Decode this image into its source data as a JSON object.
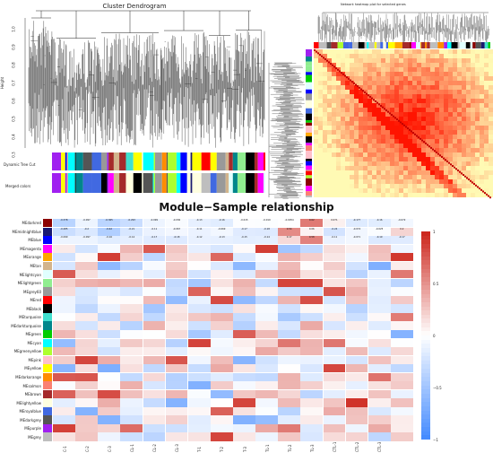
{
  "dendrogram": {
    "title": "Cluster Dendrogram",
    "ylabel": "Height",
    "yticks": [
      "1.0",
      "0.9",
      "0.8",
      "0.7",
      "0.6",
      "0.5",
      "0.4",
      "0.3"
    ],
    "color_bar_labels": [
      "Dynamic Tree Cut",
      "Merged colors"
    ]
  },
  "heatmap_tom": {
    "title": "Network heatmap plot for selected genes"
  },
  "relationship": {
    "title": "Module−Sample relationship",
    "modules": [
      "MEdarkred",
      "MEmidnightblue",
      "MEblue",
      "MEmagenta",
      "MEorange",
      "MEtan",
      "MElightcyan",
      "MElightgreen",
      "MEgrey60",
      "MEred",
      "MEblack",
      "MEturquoise",
      "MEdarkturquoise",
      "MEgreen",
      "MEcyan",
      "MEgreenyellow",
      "MEpink",
      "MEyellow",
      "MEdarkorange",
      "MEsalmon",
      "MEbrown",
      "MElightyellow",
      "MEroyalblue",
      "MEdarkgrey",
      "MEpurple",
      "MEgrey"
    ],
    "module_colors": [
      "#8b0000",
      "#191970",
      "#0000ff",
      "#ff00ff",
      "#ffa500",
      "#d2b48c",
      "#e0ffff",
      "#90ee90",
      "#999999",
      "#ff0000",
      "#000000",
      "#40e0d0",
      "#00868b",
      "#00cd00",
      "#00ffff",
      "#adff2f",
      "#ffc0cb",
      "#ffff00",
      "#ff8c00",
      "#fa8072",
      "#a52a2a",
      "#ffffe0",
      "#4169e1",
      "#555555",
      "#a020f0",
      "#bebebe"
    ],
    "samples": [
      "C-1",
      "C-2",
      "C-3",
      "CL-1",
      "CL-2",
      "CL-3",
      "T-1",
      "T-2",
      "T-3",
      "TL-1",
      "TL-2",
      "TL-3",
      "CTL-1",
      "CTL-2",
      "CTL-3"
    ],
    "visible_cells": [
      [
        "-0.378",
        "-0.097",
        "-0.365",
        "-0.293",
        "-0.099",
        "-0.036",
        "-0.13",
        "-0.16",
        "-0.015",
        "-0.019",
        "-0.0054",
        "0.62",
        "0.071",
        "-0.177",
        "-0.16",
        "-0.072"
      ],
      [
        "-0.285",
        "-0.2",
        "-0.42",
        "-0.21",
        "-0.11",
        "-0.067",
        "-0.11",
        "-0.069",
        "-0.17",
        "-0.18",
        "0.54",
        "0.06",
        "-0.24",
        "-0.074",
        "-0.025",
        "0.2"
      ],
      [
        "-0.099",
        "-0.097",
        "-0.16",
        "-0.14",
        "-0.17",
        "-0.18",
        "-0.12",
        "-0.13",
        "-0.15",
        "-0.14",
        "0.17",
        "0.58",
        "-0.11",
        "-0.071",
        "-0.19",
        "-0.17"
      ]
    ],
    "colorbar_ticks": [
      "1",
      "0.5",
      "0",
      "−0.5",
      "−1"
    ]
  }
}
